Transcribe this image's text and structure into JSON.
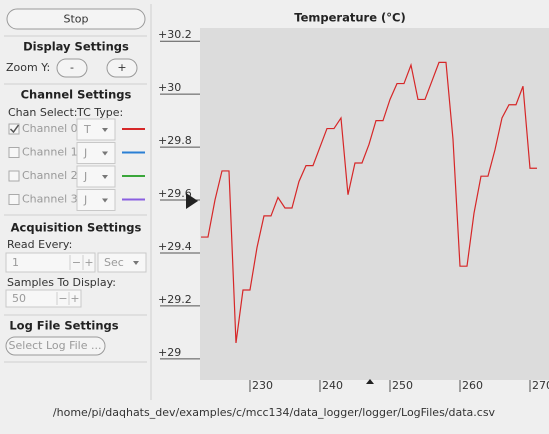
{
  "controls": {
    "stop_button": "Stop",
    "display_settings": {
      "title": "Display Settings",
      "zoom_label": "Zoom Y:",
      "zoom_out": "-",
      "zoom_in": "+"
    },
    "channel_settings": {
      "title": "Channel Settings",
      "chan_select": "Chan Select:",
      "tc_type": "TC Type:",
      "channels": [
        {
          "name": "Channel 0",
          "checked": true,
          "tc": "T",
          "color": "#d62728"
        },
        {
          "name": "Channel 1",
          "checked": false,
          "tc": "J",
          "color": "#2a7fd4"
        },
        {
          "name": "Channel 2",
          "checked": false,
          "tc": "J",
          "color": "#3aa63a"
        },
        {
          "name": "Channel 3",
          "checked": false,
          "tc": "J",
          "color": "#8a5fe0"
        }
      ]
    },
    "acquisition_settings": {
      "title": "Acquisition Settings",
      "read_every_label": "Read Every:",
      "read_every": "1",
      "decrement": "−",
      "increment": "+",
      "unit": "Sec",
      "samples_label": "Samples To Display:",
      "samples": "50"
    },
    "log_file_settings": {
      "title": "Log File Settings",
      "select_button": "Select Log File ..."
    }
  },
  "chart_data": {
    "type": "line",
    "title": "Temperature (°C)",
    "color": "#d62728",
    "x": [
      223,
      224,
      225,
      226,
      227,
      228,
      229,
      230,
      231,
      232,
      233,
      234,
      235,
      236,
      237,
      238,
      239,
      240,
      241,
      242,
      243,
      244,
      245,
      246,
      247,
      248,
      249,
      250,
      251,
      252,
      253,
      254,
      255,
      256,
      257,
      258,
      259,
      260,
      261,
      262,
      263,
      264,
      265,
      266,
      267,
      268,
      269,
      270,
      271
    ],
    "values": [
      29.46,
      29.46,
      29.6,
      29.71,
      29.71,
      29.06,
      29.26,
      29.26,
      29.42,
      29.54,
      29.54,
      29.61,
      29.57,
      29.57,
      29.67,
      29.73,
      29.73,
      29.8,
      29.87,
      29.87,
      29.91,
      29.62,
      29.74,
      29.74,
      29.81,
      29.9,
      29.9,
      29.98,
      30.04,
      30.04,
      30.11,
      29.98,
      29.98,
      30.05,
      30.12,
      30.12,
      29.83,
      29.35,
      29.35,
      29.55,
      29.69,
      29.69,
      29.79,
      29.91,
      29.96,
      29.96,
      30.03,
      29.72,
      29.72
    ],
    "xlim": [
      222.86,
      271.43
    ],
    "xticks": [
      230,
      240,
      250,
      260,
      270
    ],
    "ylim": [
      28.92,
      30.25
    ],
    "yticks": [
      {
        "value": 29,
        "label": "+29"
      },
      {
        "value": 29.2,
        "label": "+29.2"
      },
      {
        "value": 29.4,
        "label": "+29.4"
      },
      {
        "value": 29.6,
        "label": "+29.6"
      },
      {
        "value": 29.8,
        "label": "+29.8"
      },
      {
        "value": 30,
        "label": "+30"
      },
      {
        "value": 30.2,
        "label": "+30.2"
      }
    ]
  },
  "status": {
    "file_path": "/home/pi/daqhats_dev/examples/c/mcc134/data_logger/logger/LogFiles/data.csv"
  }
}
